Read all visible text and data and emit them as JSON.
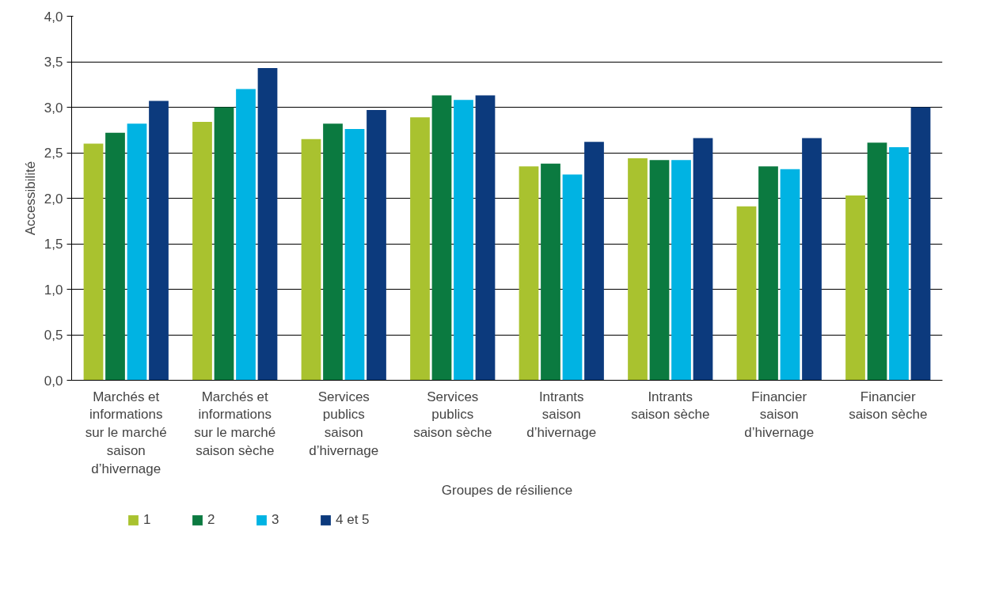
{
  "chart_data": {
    "type": "bar",
    "xlabel": "Groupes de résilience",
    "ylabel": "Accessibilité",
    "categories": [
      "Marchés et informations sur le marché saison d’hivernage",
      "Marchés et informations sur le marché saison sèche",
      "Services publics saison d’hivernage",
      "Services publics saison sèche",
      "Intrants saison d’hivernage",
      "Intrants saison sèche",
      "Financier saison d’hivernage",
      "Financier saison sèche"
    ],
    "series": [
      {
        "name": "1",
        "color": "#a9c22f",
        "values": [
          2.6,
          2.84,
          2.65,
          2.89,
          2.35,
          2.44,
          1.91,
          2.03
        ]
      },
      {
        "name": "2",
        "color": "#0b7a40",
        "values": [
          2.72,
          3.0,
          2.82,
          3.13,
          2.38,
          2.42,
          2.35,
          2.61
        ]
      },
      {
        "name": "3",
        "color": "#00b3e3",
        "values": [
          2.82,
          3.2,
          2.76,
          3.08,
          2.26,
          2.42,
          2.32,
          2.56
        ]
      },
      {
        "name": "4 et 5",
        "color": "#0c3a7d",
        "values": [
          3.07,
          3.43,
          2.97,
          3.13,
          2.62,
          2.66,
          2.66,
          3.0
        ]
      }
    ],
    "ylim": [
      0,
      4
    ],
    "yticks": [
      {
        "value": 0,
        "label": "0,0"
      },
      {
        "value": 0.5,
        "label": "0,5"
      },
      {
        "value": 1,
        "label": "1,0"
      },
      {
        "value": 1.5,
        "label": "1,5"
      },
      {
        "value": 2,
        "label": "2,0"
      },
      {
        "value": 2.5,
        "label": "2,5"
      },
      {
        "value": 3,
        "label": "3,0"
      },
      {
        "value": 3.5,
        "label": "3,5"
      },
      {
        "value": 4,
        "label": "4,0"
      }
    ],
    "grid": "y",
    "legend": "bottom"
  }
}
